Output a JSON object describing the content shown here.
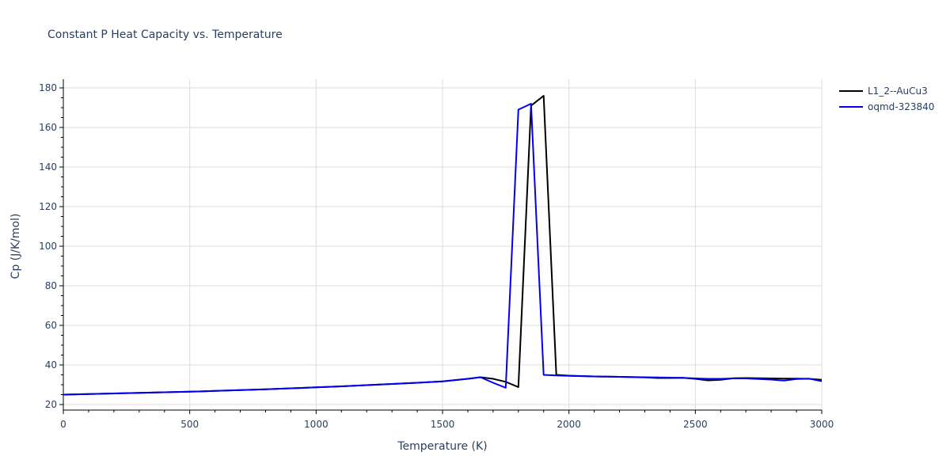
{
  "chart_data": {
    "type": "line",
    "title": "Constant P Heat Capacity vs. Temperature",
    "xlabel": "Temperature (K)",
    "ylabel": "Cp (J/K/mol)",
    "xlim": [
      0,
      3000
    ],
    "ylim": [
      17,
      185
    ],
    "xticks": [
      0,
      500,
      1000,
      1500,
      2000,
      2500,
      3000
    ],
    "yticks": [
      20,
      40,
      60,
      80,
      100,
      120,
      140,
      160,
      180
    ],
    "grid": true,
    "legend_position": "top-right-outside",
    "series": [
      {
        "name": "L1_2--AuCu3",
        "color": "#000000",
        "x": [
          0,
          100,
          200,
          300,
          400,
          500,
          600,
          700,
          800,
          900,
          1000,
          1100,
          1200,
          1300,
          1400,
          1500,
          1600,
          1650,
          1700,
          1750,
          1800,
          1850,
          1900,
          1950,
          2000,
          2100,
          2200,
          2300,
          2350,
          2400,
          2450,
          2500,
          2550,
          2600,
          2650,
          2700,
          2750,
          2800,
          2850,
          2900,
          2950,
          3000
        ],
        "y": [
          25.0,
          25.3,
          25.6,
          25.9,
          26.2,
          26.5,
          26.9,
          27.3,
          27.7,
          28.2,
          28.7,
          29.2,
          29.8,
          30.4,
          31.0,
          31.7,
          33.0,
          33.8,
          33.0,
          31.5,
          28.8,
          171.0,
          176.0,
          35.0,
          34.6,
          34.2,
          34.0,
          33.7,
          33.4,
          33.4,
          33.5,
          33.0,
          32.2,
          32.5,
          33.3,
          33.4,
          33.3,
          33.2,
          33.1,
          33.1,
          33.0,
          32.5
        ]
      },
      {
        "name": "oqmd-323840",
        "color": "#0000ee",
        "x": [
          0,
          100,
          200,
          300,
          400,
          500,
          600,
          700,
          800,
          900,
          1000,
          1100,
          1200,
          1300,
          1400,
          1500,
          1600,
          1650,
          1700,
          1750,
          1800,
          1850,
          1900,
          1950,
          2000,
          2100,
          2200,
          2300,
          2350,
          2400,
          2450,
          2500,
          2550,
          2600,
          2650,
          2700,
          2750,
          2800,
          2850,
          2900,
          2950,
          3000
        ],
        "y": [
          25.0,
          25.3,
          25.6,
          25.9,
          26.2,
          26.5,
          26.9,
          27.3,
          27.7,
          28.2,
          28.7,
          29.2,
          29.8,
          30.4,
          31.0,
          31.7,
          33.0,
          33.8,
          31.0,
          28.5,
          169.0,
          172.0,
          35.0,
          34.7,
          34.5,
          34.2,
          34.0,
          33.8,
          33.7,
          33.6,
          33.5,
          33.2,
          33.0,
          33.0,
          33.2,
          33.2,
          32.9,
          32.6,
          32.1,
          32.9,
          33.1,
          31.8
        ]
      }
    ]
  }
}
